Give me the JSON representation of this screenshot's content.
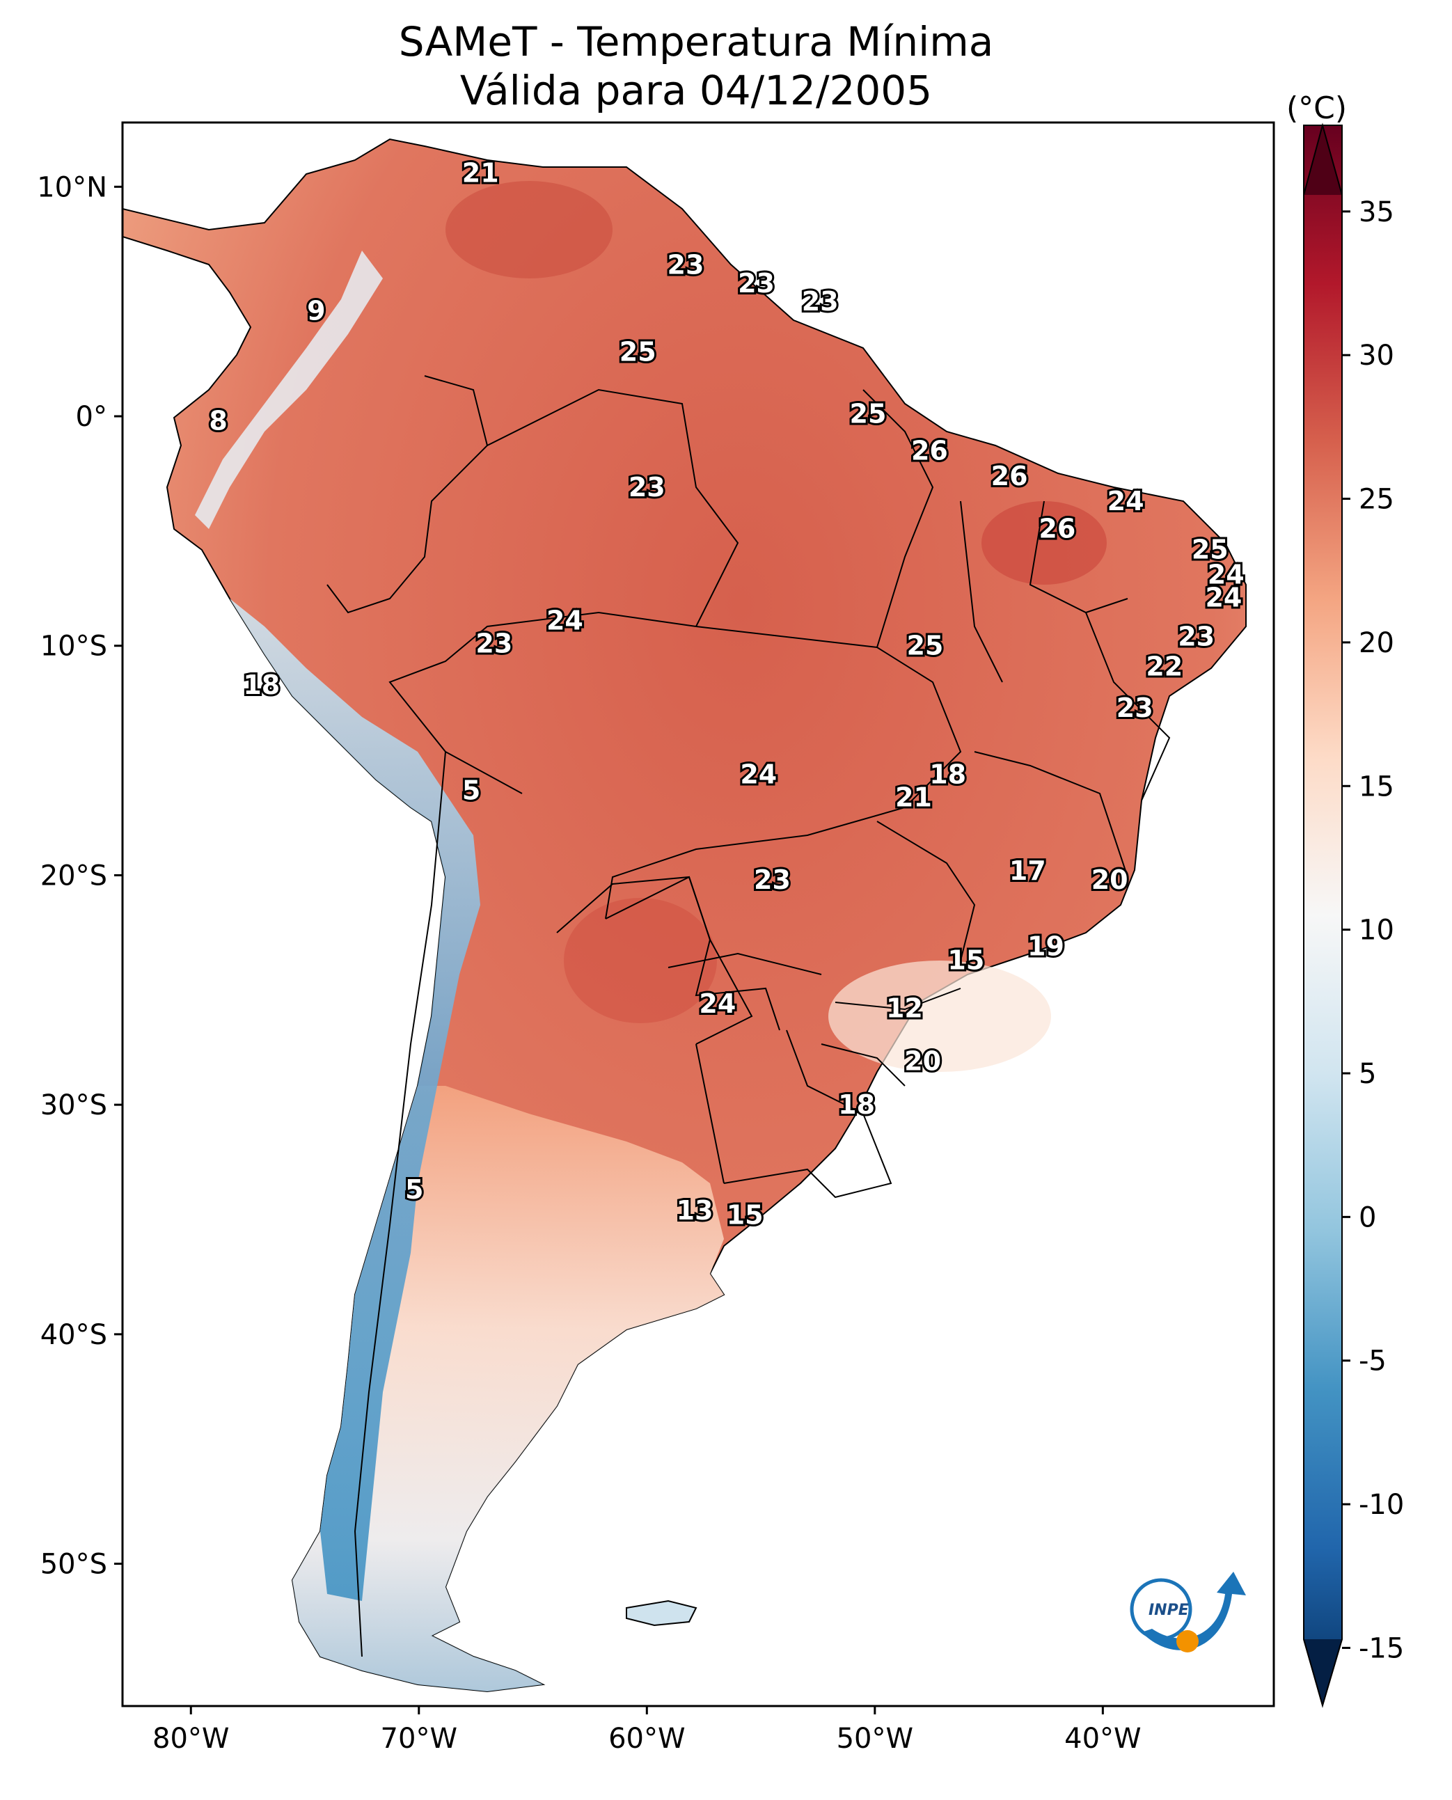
{
  "title_line1": "SAMeT - Temperatura Mínima",
  "title_line2": "Válida para 04/12/2005",
  "colorbar": {
    "unit": "(°C)",
    "ticks": [
      "35",
      "30",
      "25",
      "20",
      "15",
      "10",
      "5",
      "0",
      "-5",
      "-10",
      "-15"
    ],
    "range": [
      -17,
      38
    ],
    "colors": [
      "#053061",
      "#2166ac",
      "#4393c3",
      "#92c5de",
      "#d1e5f0",
      "#f7f7f7",
      "#fddbc7",
      "#f4a582",
      "#d6604d",
      "#b2182b",
      "#67001f"
    ]
  },
  "axes": {
    "lat_labels": [
      "10°N",
      "0°",
      "10°S",
      "20°S",
      "30°S",
      "40°S",
      "50°S"
    ],
    "lon_labels": [
      "80°W",
      "70°W",
      "60°W",
      "50°W",
      "40°W"
    ]
  },
  "contour_labels": [
    {
      "text": "21",
      "lon": -67.3,
      "lat": 10.6
    },
    {
      "text": "9",
      "lon": -74.5,
      "lat": 4.6
    },
    {
      "text": "8",
      "lon": -78.8,
      "lat": -0.2
    },
    {
      "text": "23",
      "lon": -58.3,
      "lat": 6.6
    },
    {
      "text": "23",
      "lon": -55.2,
      "lat": 5.8
    },
    {
      "text": "23",
      "lon": -52.4,
      "lat": 5.0
    },
    {
      "text": "25",
      "lon": -60.4,
      "lat": 2.8
    },
    {
      "text": "25",
      "lon": -50.3,
      "lat": 0.1
    },
    {
      "text": "26",
      "lon": -47.6,
      "lat": -1.5
    },
    {
      "text": "26",
      "lon": -44.1,
      "lat": -2.6
    },
    {
      "text": "24",
      "lon": -39.0,
      "lat": -3.7
    },
    {
      "text": "23",
      "lon": -60.0,
      "lat": -3.1
    },
    {
      "text": "26",
      "lon": -42.0,
      "lat": -4.9
    },
    {
      "text": "25",
      "lon": -35.3,
      "lat": -5.8
    },
    {
      "text": "24",
      "lon": -34.6,
      "lat": -6.9
    },
    {
      "text": "24",
      "lon": -34.7,
      "lat": -7.9
    },
    {
      "text": "24",
      "lon": -63.6,
      "lat": -8.9
    },
    {
      "text": "23",
      "lon": -66.7,
      "lat": -9.9
    },
    {
      "text": "25",
      "lon": -47.8,
      "lat": -10.0
    },
    {
      "text": "23",
      "lon": -35.9,
      "lat": -9.6
    },
    {
      "text": "22",
      "lon": -37.3,
      "lat": -10.9
    },
    {
      "text": "18",
      "lon": -76.9,
      "lat": -11.7
    },
    {
      "text": "23",
      "lon": -38.6,
      "lat": -12.7
    },
    {
      "text": "5",
      "lon": -67.7,
      "lat": -16.3
    },
    {
      "text": "24",
      "lon": -55.1,
      "lat": -15.6
    },
    {
      "text": "18",
      "lon": -46.8,
      "lat": -15.6
    },
    {
      "text": "21",
      "lon": -48.3,
      "lat": -16.6
    },
    {
      "text": "17",
      "lon": -43.3,
      "lat": -19.8
    },
    {
      "text": "20",
      "lon": -39.7,
      "lat": -20.2
    },
    {
      "text": "23",
      "lon": -54.5,
      "lat": -20.2
    },
    {
      "text": "19",
      "lon": -42.5,
      "lat": -23.1
    },
    {
      "text": "15",
      "lon": -46.0,
      "lat": -23.7
    },
    {
      "text": "12",
      "lon": -48.7,
      "lat": -25.8
    },
    {
      "text": "24",
      "lon": -56.9,
      "lat": -25.6
    },
    {
      "text": "20",
      "lon": -47.9,
      "lat": -28.1
    },
    {
      "text": "18",
      "lon": -50.8,
      "lat": -30.0
    },
    {
      "text": "5",
      "lon": -70.2,
      "lat": -33.7
    },
    {
      "text": "13",
      "lon": -57.9,
      "lat": -34.6
    },
    {
      "text": "15",
      "lon": -55.7,
      "lat": -34.8
    }
  ],
  "logo": {
    "text": "INPE"
  }
}
